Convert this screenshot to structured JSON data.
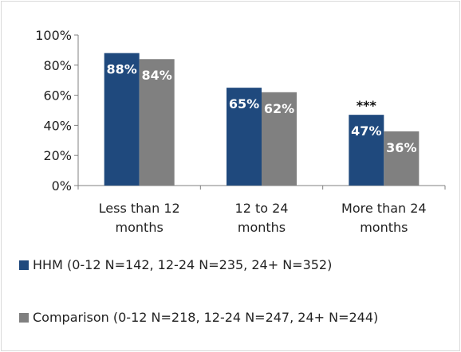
{
  "chart_data": {
    "type": "bar",
    "categories": [
      [
        "Less than 12",
        "months"
      ],
      [
        "12 to 24",
        "months"
      ],
      [
        "More than 24",
        "months"
      ]
    ],
    "series": [
      {
        "name": "HHM (0-12 N=142, 12-24 N=235, 24+ N=352)",
        "color": "#1f497d",
        "values": [
          88,
          65,
          47
        ],
        "labels": [
          "88%",
          "65%",
          "47%"
        ]
      },
      {
        "name": "Comparison (0-12 N=218, 12-24 N=247, 24+ N=244)",
        "color": "#808080",
        "values": [
          84,
          62,
          36
        ],
        "labels": [
          "84%",
          "62%",
          "36%"
        ]
      }
    ],
    "ylim": [
      0,
      100
    ],
    "yticks": [
      0,
      20,
      40,
      60,
      80,
      100
    ],
    "ytick_labels": [
      "0%",
      "20%",
      "40%",
      "60%",
      "80%",
      "100%"
    ],
    "annotations": [
      {
        "category_index": 2,
        "series_index": 0,
        "text": "***"
      }
    ],
    "grid": false,
    "legend_position": "bottom"
  }
}
